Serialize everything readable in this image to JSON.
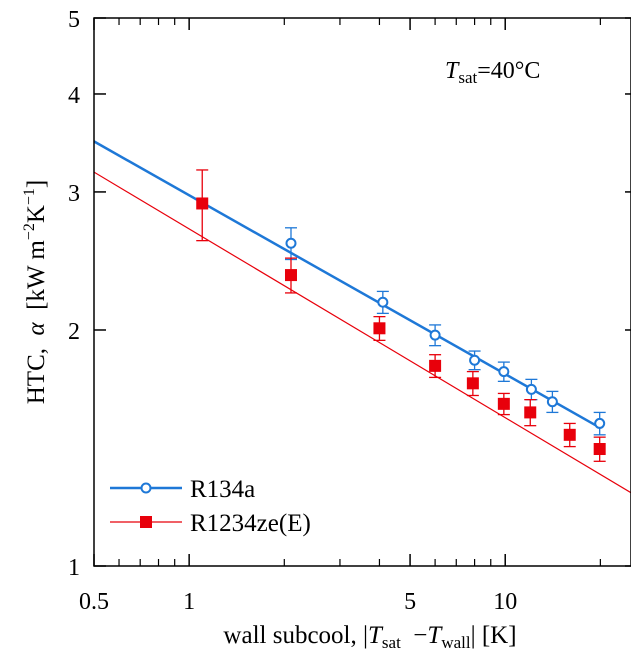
{
  "chart_data": {
    "type": "scatter",
    "title": "",
    "annotation": {
      "symbol": "T",
      "subscript": "sat",
      "suffix": "=40°C"
    },
    "xaxis": {
      "scale": "log",
      "range": [
        0.5,
        25
      ],
      "ticks": [
        0.5,
        1,
        5,
        10
      ],
      "tick_labels": [
        "0.5",
        "1",
        "5",
        "10"
      ],
      "minor_ticks": [
        0.6,
        0.7,
        0.8,
        0.9,
        2,
        3,
        4,
        6,
        7,
        8,
        9,
        20
      ],
      "label": {
        "prefix": "wall subcool, |",
        "t1": "T",
        "t1_sub": "sat",
        "mid": "  −",
        "t2": "T",
        "t2_sub": "wall",
        "suffix": "| [K]"
      }
    },
    "yaxis": {
      "scale": "log",
      "range": [
        1,
        5
      ],
      "ticks": [
        1,
        2,
        3,
        4,
        5
      ],
      "tick_labels": [
        "1",
        "2",
        "3",
        "4",
        "5"
      ],
      "label": {
        "prefix": "HTC,  ",
        "alpha": "α",
        "mid": "  [kW m",
        "exp1": "−2",
        "k": "K",
        "exp2": "−1",
        "suffix": "]"
      }
    },
    "grid": false,
    "legend": {
      "position": "bottom-left"
    },
    "series": [
      {
        "name": "R134a",
        "color": "#1e78d7",
        "marker": "open-circle",
        "points": [
          {
            "x": 2.1,
            "y": 2.58,
            "err": 0.12
          },
          {
            "x": 4.1,
            "y": 2.17,
            "err": 0.07
          },
          {
            "x": 6.0,
            "y": 1.97,
            "err": 0.06
          },
          {
            "x": 8.0,
            "y": 1.83,
            "err": 0.05
          },
          {
            "x": 9.9,
            "y": 1.77,
            "err": 0.05
          },
          {
            "x": 12.1,
            "y": 1.68,
            "err": 0.05
          },
          {
            "x": 14.1,
            "y": 1.62,
            "err": 0.05
          },
          {
            "x": 19.9,
            "y": 1.52,
            "err": 0.05
          }
        ],
        "fit": {
          "x": [
            0.5,
            20
          ],
          "y": [
            3.48,
            1.5
          ]
        }
      },
      {
        "name": "R1234ze(E)",
        "color": "#e8000b",
        "marker": "filled-square",
        "points": [
          {
            "x": 1.1,
            "y": 2.9,
            "err": 0.3
          },
          {
            "x": 2.1,
            "y": 2.35,
            "err": 0.12
          },
          {
            "x": 4.0,
            "y": 2.01,
            "err": 0.07
          },
          {
            "x": 6.0,
            "y": 1.8,
            "err": 0.06
          },
          {
            "x": 7.9,
            "y": 1.71,
            "err": 0.06
          },
          {
            "x": 9.9,
            "y": 1.61,
            "err": 0.05
          },
          {
            "x": 12.0,
            "y": 1.57,
            "err": 0.06
          },
          {
            "x": 16.0,
            "y": 1.47,
            "err": 0.05
          },
          {
            "x": 19.9,
            "y": 1.41,
            "err": 0.05
          }
        ],
        "fit": {
          "x": [
            0.5,
            25
          ],
          "y": [
            3.18,
            1.24
          ]
        }
      }
    ]
  }
}
